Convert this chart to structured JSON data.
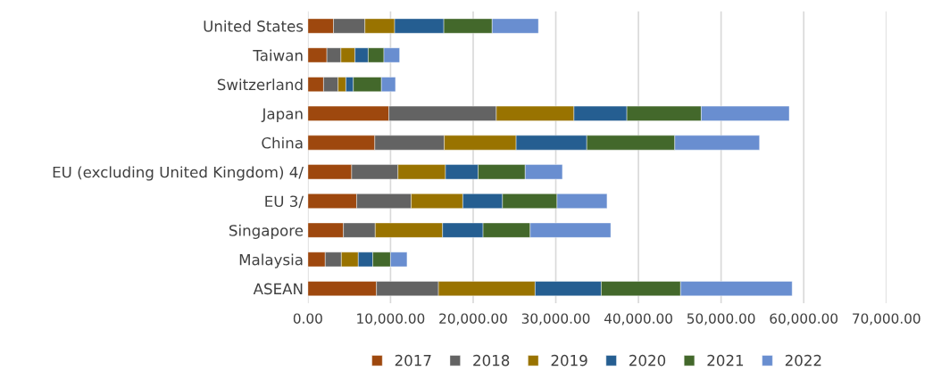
{
  "chart_data": {
    "type": "bar",
    "orientation": "horizontal",
    "stacked": true,
    "categories": [
      "United States",
      "Taiwan",
      "Switzerland",
      "Japan",
      "China",
      "EU (excluding United Kingdom) 4/",
      "EU 3/",
      "Singapore",
      "Malaysia",
      "ASEAN"
    ],
    "series": [
      {
        "name": "2017",
        "color": "#9e480e",
        "values": [
          3100,
          2300,
          1900,
          9800,
          8100,
          5300,
          5900,
          4300,
          2100,
          8300
        ]
      },
      {
        "name": "2018",
        "color": "#636363",
        "values": [
          3800,
          1700,
          1750,
          13000,
          8400,
          5600,
          6600,
          3850,
          1950,
          7500
        ]
      },
      {
        "name": "2019",
        "color": "#997300",
        "values": [
          3600,
          1700,
          950,
          9400,
          8700,
          5750,
          6250,
          8150,
          2050,
          11700
        ]
      },
      {
        "name": "2020",
        "color": "#255e91",
        "values": [
          5950,
          1600,
          900,
          6400,
          8550,
          3950,
          4800,
          4900,
          1750,
          8000
        ]
      },
      {
        "name": "2021",
        "color": "#43682b",
        "values": [
          5850,
          1900,
          3400,
          9000,
          10650,
          5700,
          6600,
          5700,
          2150,
          9600
        ]
      },
      {
        "name": "2022",
        "color": "#698ed0",
        "values": [
          5600,
          1900,
          1700,
          10650,
          10250,
          4500,
          6050,
          9750,
          2000,
          13500
        ]
      }
    ],
    "xlim": [
      0,
      70000
    ],
    "xticks": [
      {
        "value": 0,
        "label": "0.00"
      },
      {
        "value": 10000,
        "label": "10,000.00"
      },
      {
        "value": 20000,
        "label": "20,000.00"
      },
      {
        "value": 30000,
        "label": "30,000.00"
      },
      {
        "value": 40000,
        "label": "40,000.00"
      },
      {
        "value": 50000,
        "label": "50,000.00"
      },
      {
        "value": 60000,
        "label": "60,000.00"
      },
      {
        "value": 70000,
        "label": "70,000.00"
      }
    ],
    "grid": "x",
    "legend": "bottom"
  }
}
